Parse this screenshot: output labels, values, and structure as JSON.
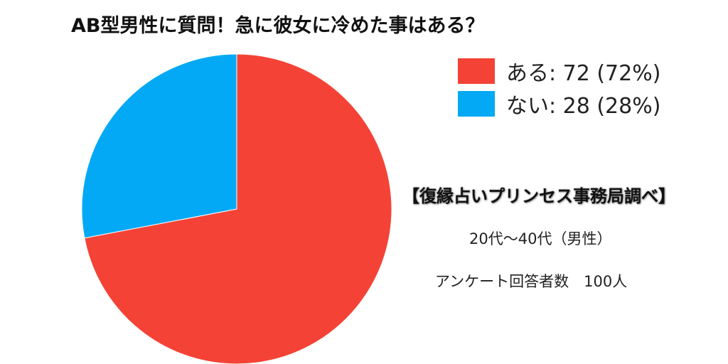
{
  "chart_data": {
    "type": "pie",
    "title": "AB型男性に質問！急に彼女に冷めた事はある？",
    "slices": [
      {
        "label": "ある",
        "value": 72,
        "percent": "72%",
        "color": "#f44336",
        "legend": "ある: 72 (72%)"
      },
      {
        "label": "ない",
        "value": 28,
        "percent": "28%",
        "color": "#03a9f4",
        "legend": "ない: 28 (28%)"
      }
    ],
    "legend_position": "top-right"
  },
  "annotations": {
    "source": "【復縁占いプリンセス事務局調べ】",
    "age_range": "20代～40代（男性）",
    "respondents": "アンケート回答者数　100人"
  }
}
